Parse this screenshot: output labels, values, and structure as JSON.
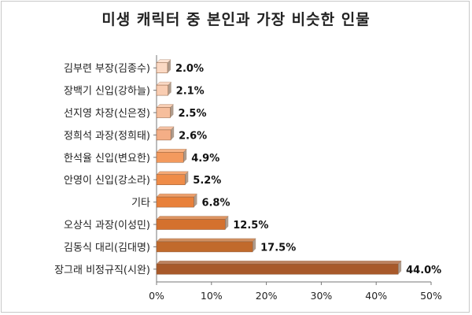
{
  "chart_data": {
    "type": "bar",
    "orientation": "horizontal",
    "title": "미생 캐릭터 중 본인과 가장 비슷한 인물",
    "categories": [
      "김부련 부장(김종수)",
      "장백기 신입(강하늘)",
      "선지영 차장(신은정)",
      "정희석 과장(정희태)",
      "한석율 신입(변요한)",
      "안영이 신입(강소라)",
      "기타",
      "오상식 과장(이성민)",
      "김동식 대리(김대명)",
      "장그래 비정규직(시완)"
    ],
    "values": [
      2.0,
      2.1,
      2.5,
      2.6,
      4.9,
      5.2,
      6.8,
      12.5,
      17.5,
      44.0
    ],
    "value_labels": [
      "2.0%",
      "2.1%",
      "2.5%",
      "2.6%",
      "4.9%",
      "5.2%",
      "6.8%",
      "12.5%",
      "17.5%",
      "44.0%"
    ],
    "xlim": [
      0,
      50
    ],
    "x_ticks": [
      "0%",
      "10%",
      "20%",
      "30%",
      "40%",
      "50%"
    ],
    "bar_colors": [
      "#fbd9c4",
      "#f9cdb2",
      "#f6be9c",
      "#f4ae86",
      "#f39a5e",
      "#ef8c48",
      "#e8803a",
      "#d4712e",
      "#c16a2c",
      "#a8592a"
    ],
    "grid": false,
    "legend": "none"
  }
}
